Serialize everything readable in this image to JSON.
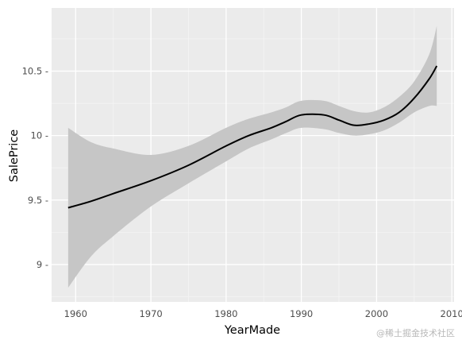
{
  "chart_data": {
    "type": "line",
    "xlabel": "YearMade",
    "ylabel": "SalePrice",
    "xlim": [
      1956.8,
      2010.3
    ],
    "ylim": [
      8.71,
      10.99
    ],
    "x_ticks": [
      1960,
      1970,
      1980,
      1990,
      2000,
      2010
    ],
    "y_ticks": [
      9,
      9.5,
      10,
      10.5
    ],
    "x_tick_labels": [
      "1960",
      "1970",
      "1980",
      "1990",
      "2000",
      "2010"
    ],
    "y_tick_labels": [
      "9 -",
      "9.5 -",
      "10 -",
      "10.5 -"
    ],
    "grid": true,
    "series": [
      {
        "x": [
          1959,
          1962,
          1965,
          1970,
          1975,
          1980,
          1983,
          1986,
          1988,
          1990,
          1993,
          1995,
          1997,
          1999,
          2001,
          2003,
          2005,
          2007,
          2008
        ],
        "y": [
          9.44,
          9.49,
          9.55,
          9.65,
          9.77,
          9.92,
          10.0,
          10.06,
          10.11,
          10.16,
          10.16,
          10.12,
          10.08,
          10.09,
          10.12,
          10.18,
          10.29,
          10.44,
          10.54
        ],
        "lower": [
          8.82,
          9.06,
          9.22,
          9.45,
          9.63,
          9.8,
          9.9,
          9.97,
          10.02,
          10.06,
          10.05,
          10.02,
          10.0,
          10.01,
          10.04,
          10.1,
          10.18,
          10.23,
          10.23
        ],
        "upper": [
          10.06,
          9.95,
          9.9,
          9.85,
          9.92,
          10.06,
          10.13,
          10.18,
          10.22,
          10.27,
          10.27,
          10.23,
          10.19,
          10.18,
          10.22,
          10.3,
          10.42,
          10.63,
          10.85
        ]
      }
    ],
    "colors": {
      "panel": "#ebebeb",
      "grid_major": "#ffffff",
      "grid_minor": "#f5f5f5",
      "ribbon": "#c6c6c6",
      "line": "#000000"
    }
  },
  "watermark": "@稀土掘金技术社区"
}
